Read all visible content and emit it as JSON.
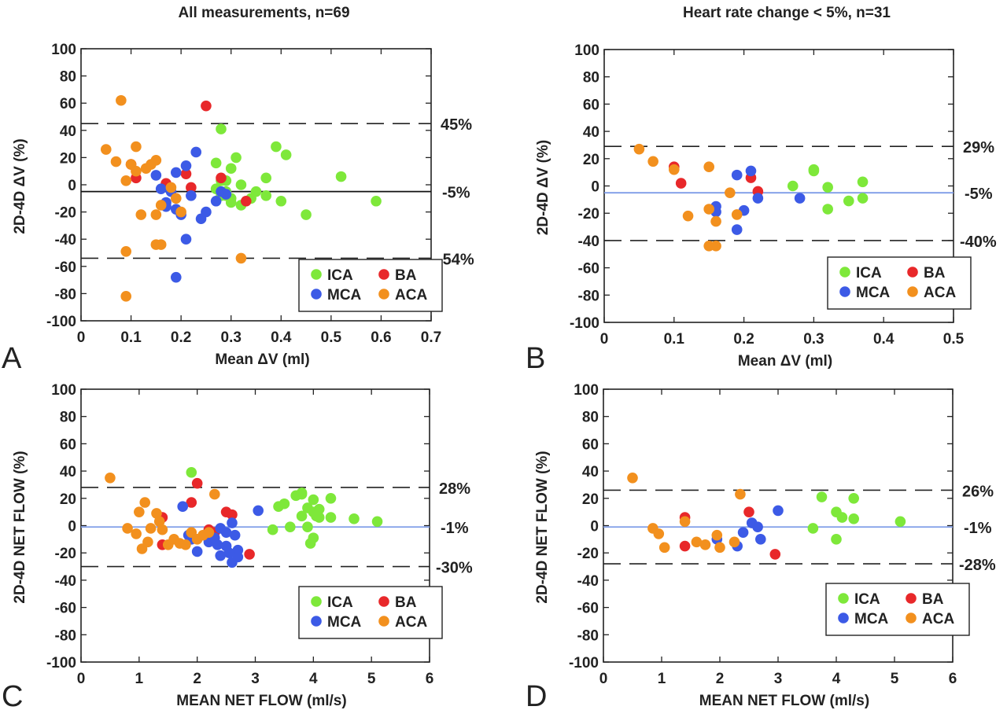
{
  "colors": {
    "ICA": "#7ee83a",
    "BA": "#e8282a",
    "MCA": "#3c5ae6",
    "ACA": "#f2901e",
    "axis": "#222222",
    "mean_line_black": "#111111",
    "mean_line_blue": "#7e9ce8"
  },
  "chart_data": [
    {
      "type": "scatter",
      "panel": "A",
      "title": "All measurements, n=69",
      "xlabel": "Mean ΔV (ml)",
      "ylabel": "2D-4D ΔV (%)",
      "xlim": [
        0,
        0.7
      ],
      "ylim": [
        -100,
        100
      ],
      "xticks": [
        "0",
        "0.1",
        "0.2",
        "0.3",
        "0.4",
        "0.5",
        "0.6",
        "0.7"
      ],
      "yticks": [
        "100",
        "80",
        "60",
        "40",
        "20",
        "0",
        "-20",
        "-40",
        "-60",
        "-80",
        "-100"
      ],
      "lines": {
        "mean": -5,
        "upper": 45,
        "lower": -54,
        "mean_color": "mean_line_black"
      },
      "annotations": {
        "upper": "45%",
        "mean": "-5%",
        "lower": "-54%"
      },
      "legend": {
        "placement": "lower-right",
        "entries": [
          "ICA",
          "BA",
          "MCA",
          "ACA"
        ]
      },
      "series": [
        {
          "name": "ICA",
          "points": [
            [
              0.28,
              41
            ],
            [
              0.27,
              16
            ],
            [
              0.29,
              3
            ],
            [
              0.28,
              3
            ],
            [
              0.3,
              12
            ],
            [
              0.31,
              20
            ],
            [
              0.29,
              -5
            ],
            [
              0.3,
              -10
            ],
            [
              0.3,
              -13
            ],
            [
              0.32,
              0
            ],
            [
              0.32,
              -15
            ],
            [
              0.34,
              -10
            ],
            [
              0.35,
              -5
            ],
            [
              0.37,
              5
            ],
            [
              0.37,
              -8
            ],
            [
              0.39,
              28
            ],
            [
              0.4,
              -12
            ],
            [
              0.41,
              22
            ],
            [
              0.45,
              -22
            ],
            [
              0.52,
              6
            ],
            [
              0.59,
              -12
            ],
            [
              0.28,
              -8
            ],
            [
              0.27,
              -3
            ],
            [
              0.29,
              -8
            ]
          ]
        },
        {
          "name": "BA",
          "points": [
            [
              0.25,
              58
            ],
            [
              0.1,
              15
            ],
            [
              0.11,
              5
            ],
            [
              0.17,
              1
            ],
            [
              0.21,
              8
            ],
            [
              0.22,
              -2
            ],
            [
              0.28,
              5
            ],
            [
              0.33,
              -12
            ]
          ]
        },
        {
          "name": "MCA",
          "points": [
            [
              0.15,
              7
            ],
            [
              0.16,
              -3
            ],
            [
              0.17,
              -16
            ],
            [
              0.17,
              -13
            ],
            [
              0.18,
              -5
            ],
            [
              0.19,
              9
            ],
            [
              0.19,
              -18
            ],
            [
              0.2,
              -22
            ],
            [
              0.21,
              -40
            ],
            [
              0.21,
              14
            ],
            [
              0.22,
              -8
            ],
            [
              0.23,
              24
            ],
            [
              0.24,
              -25
            ],
            [
              0.25,
              -20
            ],
            [
              0.27,
              -12
            ],
            [
              0.28,
              -5
            ],
            [
              0.29,
              -7
            ],
            [
              0.19,
              -68
            ]
          ]
        },
        {
          "name": "ACA",
          "points": [
            [
              0.05,
              26
            ],
            [
              0.07,
              17
            ],
            [
              0.08,
              62
            ],
            [
              0.09,
              3
            ],
            [
              0.09,
              -49
            ],
            [
              0.09,
              -82
            ],
            [
              0.1,
              15
            ],
            [
              0.11,
              28
            ],
            [
              0.11,
              10
            ],
            [
              0.12,
              -22
            ],
            [
              0.13,
              12
            ],
            [
              0.14,
              15
            ],
            [
              0.15,
              18
            ],
            [
              0.15,
              -44
            ],
            [
              0.15,
              -22
            ],
            [
              0.16,
              -15
            ],
            [
              0.16,
              -44
            ],
            [
              0.18,
              -2
            ],
            [
              0.19,
              -10
            ],
            [
              0.2,
              -20
            ],
            [
              0.32,
              -54
            ]
          ]
        }
      ]
    },
    {
      "type": "scatter",
      "panel": "B",
      "title": "Heart rate change  < 5%, n=31",
      "xlabel": "Mean ΔV (ml)",
      "ylabel": "2D-4D  ΔV (%)",
      "xlim": [
        0,
        0.5
      ],
      "ylim": [
        -100,
        100
      ],
      "xticks": [
        "0",
        "0.1",
        "0.2",
        "0.3",
        "0.4",
        "0.5"
      ],
      "yticks": [
        "100",
        "80",
        "60",
        "40",
        "20",
        "0",
        "-20",
        "-40",
        "-60",
        "-80",
        "-100"
      ],
      "lines": {
        "mean": -5,
        "upper": 29,
        "lower": -40,
        "mean_color": "mean_line_blue"
      },
      "annotations": {
        "upper": "29%",
        "mean": "-5%",
        "lower": "-40%"
      },
      "legend": {
        "placement": "lower-right",
        "entries": [
          "ICA",
          "BA",
          "MCA",
          "ACA"
        ]
      },
      "series": [
        {
          "name": "ICA",
          "points": [
            [
              0.27,
              0
            ],
            [
              0.3,
              12
            ],
            [
              0.3,
              11
            ],
            [
              0.32,
              -1
            ],
            [
              0.32,
              -17
            ],
            [
              0.35,
              -11
            ],
            [
              0.37,
              -9
            ],
            [
              0.37,
              3
            ]
          ]
        },
        {
          "name": "BA",
          "points": [
            [
              0.1,
              14
            ],
            [
              0.11,
              2
            ],
            [
              0.21,
              6
            ],
            [
              0.22,
              -4
            ]
          ]
        },
        {
          "name": "MCA",
          "points": [
            [
              0.16,
              -15
            ],
            [
              0.16,
              -19
            ],
            [
              0.19,
              8
            ],
            [
              0.19,
              -32
            ],
            [
              0.2,
              -18
            ],
            [
              0.21,
              11
            ],
            [
              0.22,
              -9
            ],
            [
              0.28,
              -9
            ]
          ]
        },
        {
          "name": "ACA",
          "points": [
            [
              0.05,
              27
            ],
            [
              0.07,
              18
            ],
            [
              0.1,
              12
            ],
            [
              0.12,
              -22
            ],
            [
              0.15,
              14
            ],
            [
              0.15,
              -17
            ],
            [
              0.15,
              -44
            ],
            [
              0.16,
              -26
            ],
            [
              0.16,
              -44
            ],
            [
              0.18,
              -5
            ],
            [
              0.19,
              -21
            ]
          ]
        }
      ]
    },
    {
      "type": "scatter",
      "panel": "C",
      "title": "",
      "xlabel": "MEAN NET FLOW (ml/s)",
      "ylabel": "2D-4D NET FLOW (%)",
      "xlim": [
        0,
        6
      ],
      "ylim": [
        -100,
        100
      ],
      "xticks": [
        "0",
        "1",
        "2",
        "3",
        "4",
        "5",
        "6"
      ],
      "yticks": [
        "100",
        "80",
        "60",
        "40",
        "20",
        "0",
        "-20",
        "-40",
        "-60",
        "-80",
        "-100"
      ],
      "lines": {
        "mean": -1,
        "upper": 28,
        "lower": -30,
        "mean_color": "mean_line_blue"
      },
      "annotations": {
        "upper": "28%",
        "mean": "-1%",
        "lower": "-30%"
      },
      "legend": {
        "placement": "lower-right",
        "entries": [
          "ICA",
          "BA",
          "MCA",
          "ACA"
        ]
      },
      "series": [
        {
          "name": "ICA",
          "points": [
            [
              1.9,
              39
            ],
            [
              3.3,
              -3
            ],
            [
              3.4,
              14
            ],
            [
              3.5,
              16
            ],
            [
              3.6,
              -1
            ],
            [
              3.7,
              22
            ],
            [
              3.8,
              24
            ],
            [
              3.8,
              7
            ],
            [
              3.9,
              13
            ],
            [
              3.9,
              -1
            ],
            [
              3.95,
              -13
            ],
            [
              4.0,
              -9
            ],
            [
              4.0,
              10
            ],
            [
              4.0,
              19
            ],
            [
              4.1,
              6
            ],
            [
              4.1,
              12
            ],
            [
              4.3,
              6
            ],
            [
              4.3,
              20
            ],
            [
              4.7,
              5
            ],
            [
              5.1,
              3
            ],
            [
              3.8,
              23
            ],
            [
              4.05,
              7
            ]
          ]
        },
        {
          "name": "BA",
          "points": [
            [
              2.0,
              31
            ],
            [
              1.9,
              17
            ],
            [
              1.4,
              6
            ],
            [
              1.4,
              -14
            ],
            [
              2.2,
              -3
            ],
            [
              2.5,
              10
            ],
            [
              2.6,
              8
            ],
            [
              2.9,
              -21
            ],
            [
              2.3,
              -5
            ]
          ]
        },
        {
          "name": "MCA",
          "points": [
            [
              1.75,
              14
            ],
            [
              1.85,
              -7
            ],
            [
              2.0,
              -19
            ],
            [
              2.2,
              -12
            ],
            [
              2.3,
              -9
            ],
            [
              2.35,
              -14
            ],
            [
              2.4,
              -22
            ],
            [
              2.4,
              -2
            ],
            [
              2.5,
              -5
            ],
            [
              2.5,
              -15
            ],
            [
              2.6,
              -27
            ],
            [
              2.6,
              2
            ],
            [
              2.65,
              -7
            ],
            [
              2.7,
              -18
            ],
            [
              2.7,
              -23
            ],
            [
              3.05,
              11
            ],
            [
              2.55,
              -20
            ],
            [
              1.9,
              -10
            ]
          ]
        },
        {
          "name": "ACA",
          "points": [
            [
              0.5,
              35
            ],
            [
              0.8,
              -2
            ],
            [
              0.95,
              -6
            ],
            [
              1.0,
              10
            ],
            [
              1.05,
              -17
            ],
            [
              1.1,
              17
            ],
            [
              1.15,
              -12
            ],
            [
              1.2,
              -2
            ],
            [
              1.3,
              9
            ],
            [
              1.35,
              3
            ],
            [
              1.4,
              -3
            ],
            [
              1.5,
              -14
            ],
            [
              1.6,
              -10
            ],
            [
              1.7,
              -13
            ],
            [
              1.8,
              -14
            ],
            [
              1.9,
              -5
            ],
            [
              2.0,
              -10
            ],
            [
              2.1,
              -7
            ],
            [
              2.3,
              23
            ],
            [
              2.2,
              -5
            ]
          ]
        }
      ]
    },
    {
      "type": "scatter",
      "panel": "D",
      "title": "",
      "xlabel": "MEAN NET FLOW (ml/s)",
      "ylabel": "2D-4D NET FLOW (%)",
      "xlim": [
        0,
        6
      ],
      "ylim": [
        -100,
        100
      ],
      "xticks": [
        "0",
        "1",
        "2",
        "3",
        "4",
        "5",
        "6"
      ],
      "yticks": [
        "100",
        "80",
        "60",
        "40",
        "20",
        "0",
        "-20",
        "-40",
        "-60",
        "-80",
        "-100"
      ],
      "lines": {
        "mean": -1,
        "upper": 26,
        "lower": -28,
        "mean_color": "mean_line_blue"
      },
      "annotations": {
        "upper": "26%",
        "mean": "-1%",
        "lower": "-28%"
      },
      "legend": {
        "placement": "lower-right",
        "entries": [
          "ICA",
          "BA",
          "MCA",
          "ACA"
        ]
      },
      "series": [
        {
          "name": "ICA",
          "points": [
            [
              3.6,
              -2
            ],
            [
              3.75,
              21
            ],
            [
              4.0,
              10
            ],
            [
              4.0,
              -10
            ],
            [
              4.1,
              6
            ],
            [
              4.3,
              20
            ],
            [
              4.3,
              5
            ],
            [
              5.1,
              3
            ]
          ]
        },
        {
          "name": "BA",
          "points": [
            [
              1.4,
              6
            ],
            [
              1.4,
              -15
            ],
            [
              2.5,
              10
            ],
            [
              2.95,
              -21
            ]
          ]
        },
        {
          "name": "MCA",
          "points": [
            [
              1.95,
              -10
            ],
            [
              2.3,
              -15
            ],
            [
              2.4,
              -5
            ],
            [
              2.55,
              2
            ],
            [
              2.65,
              -1
            ],
            [
              2.7,
              -10
            ],
            [
              3.0,
              11
            ]
          ]
        },
        {
          "name": "ACA",
          "points": [
            [
              0.5,
              35
            ],
            [
              0.85,
              -2
            ],
            [
              0.95,
              -6
            ],
            [
              1.05,
              -16
            ],
            [
              1.4,
              3
            ],
            [
              1.6,
              -12
            ],
            [
              1.75,
              -14
            ],
            [
              1.95,
              -7
            ],
            [
              2.0,
              -16
            ],
            [
              2.25,
              -12
            ],
            [
              2.35,
              23
            ]
          ]
        }
      ]
    }
  ]
}
